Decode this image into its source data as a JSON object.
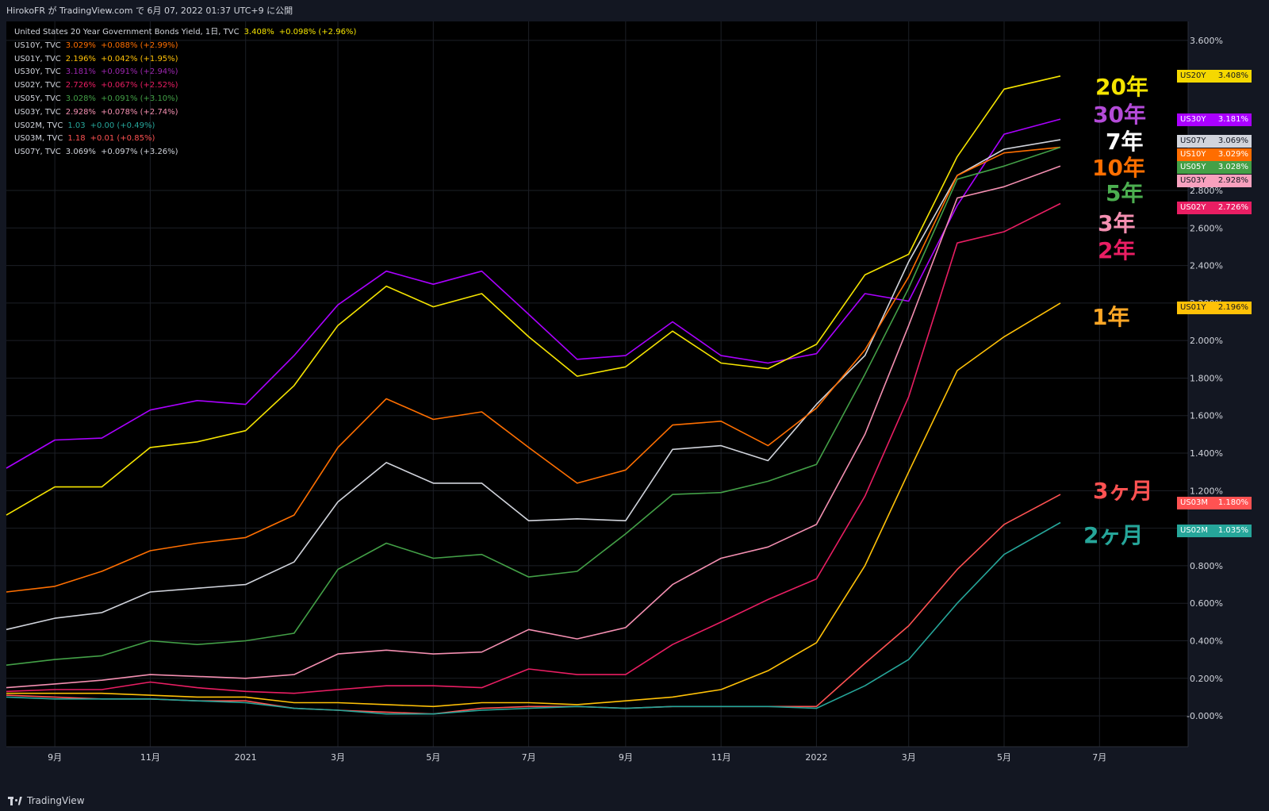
{
  "header": {
    "publisher_line": "HirokoFR が TradingView.com で 6月 07, 2022 01:37 UTC+9 に公開"
  },
  "legend": [
    {
      "name": "United States 20 Year Government Bonds Yield, 1日, TVC",
      "value": "3.408%",
      "change": "+0.098% (+2.96%)",
      "color": "#f5e400"
    },
    {
      "name": "US10Y, TVC",
      "value": "3.029%",
      "change": "+0.088% (+2.99%)",
      "color": "#ff6f00"
    },
    {
      "name": "US01Y, TVC",
      "value": "2.196%",
      "change": "+0.042% (+1.95%)",
      "color": "#ffc107"
    },
    {
      "name": "US30Y, TVC",
      "value": "3.181%",
      "change": "+0.091% (+2.94%)",
      "color": "#9c27b0"
    },
    {
      "name": "US02Y, TVC",
      "value": "2.726%",
      "change": "+0.067% (+2.52%)",
      "color": "#e91e63"
    },
    {
      "name": "US05Y, TVC",
      "value": "3.028%",
      "change": "+0.091% (+3.10%)",
      "color": "#43a047"
    },
    {
      "name": "US03Y, TVC",
      "value": "2.928%",
      "change": "+0.078% (+2.74%)",
      "color": "#f48fb1"
    },
    {
      "name": "US02M, TVC",
      "value": "1.03",
      "change": "+0.00 (+0.49%)",
      "color": "#26a69a"
    },
    {
      "name": "US03M, TVC",
      "value": "1.18",
      "change": "+0.01 (+0.85%)",
      "color": "#ff5252"
    },
    {
      "name": "US07Y, TVC",
      "value": "3.069%",
      "change": "+0.097% (+3.26%)",
      "color": "#d1d4dc"
    }
  ],
  "price_tags": [
    {
      "symbol": "US20Y",
      "value": "3.408%",
      "bg": "#f5d800",
      "fg": "#131722"
    },
    {
      "symbol": "US30Y",
      "value": "3.181%",
      "bg": "#aa00ff",
      "fg": "#ffffff"
    },
    {
      "symbol": "US07Y",
      "value": "3.069%",
      "bg": "#d1d4dc",
      "fg": "#131722"
    },
    {
      "symbol": "US10Y",
      "value": "3.029%",
      "bg": "#ff6d00",
      "fg": "#ffffff"
    },
    {
      "symbol": "US05Y",
      "value": "3.028%",
      "bg": "#43a047",
      "fg": "#ffffff"
    },
    {
      "symbol": "US03Y",
      "value": "2.928%",
      "bg": "#f8a1be",
      "fg": "#131722"
    },
    {
      "symbol": "US02Y",
      "value": "2.726%",
      "bg": "#e91e63",
      "fg": "#ffffff"
    },
    {
      "symbol": "US01Y",
      "value": "2.196%",
      "bg": "#ffc107",
      "fg": "#131722"
    },
    {
      "symbol": "US03M",
      "value": "1.180%",
      "bg": "#ff5252",
      "fg": "#ffffff"
    },
    {
      "symbol": "US02M",
      "value": "1.035%",
      "bg": "#26a69a",
      "fg": "#ffffff"
    }
  ],
  "annotations": [
    {
      "text": "20年",
      "color": "#f5e400"
    },
    {
      "text": "30年",
      "color": "#b44bd8"
    },
    {
      "text": "7年",
      "color": "#ffffff"
    },
    {
      "text": "10年",
      "color": "#ff6f00"
    },
    {
      "text": "5年",
      "color": "#4caf50"
    },
    {
      "text": "3年",
      "color": "#f48fb1"
    },
    {
      "text": "2年",
      "color": "#e91e63"
    },
    {
      "text": "1年",
      "color": "#ffa726"
    },
    {
      "text": "3ヶ月",
      "color": "#ff5252"
    },
    {
      "text": "2ヶ月",
      "color": "#26a69a"
    }
  ],
  "footer": {
    "brand": "TradingView"
  },
  "chart_data": {
    "type": "line",
    "y_unit": "%",
    "ylim": [
      -0.08,
      3.65
    ],
    "y_ticks": [
      "3.600%",
      "2.800%",
      "2.600%",
      "2.400%",
      "2.200%",
      "2.000%",
      "1.800%",
      "1.600%",
      "1.400%",
      "1.200%",
      "1.000%",
      "0.800%",
      "0.600%",
      "0.400%",
      "0.200%",
      "-0.000%"
    ],
    "x_ticks": [
      "9月",
      "11月",
      "2021",
      "3月",
      "5月",
      "7月",
      "9月",
      "11月",
      "2022",
      "3月",
      "5月",
      "7月"
    ],
    "x": [
      "2020-08-01",
      "2020-09-01",
      "2020-10-01",
      "2020-11-01",
      "2020-12-01",
      "2021-01-01",
      "2021-02-01",
      "2021-03-01",
      "2021-04-01",
      "2021-05-01",
      "2021-06-01",
      "2021-07-01",
      "2021-08-01",
      "2021-09-01",
      "2021-10-01",
      "2021-11-01",
      "2021-12-01",
      "2022-01-01",
      "2022-02-01",
      "2022-03-01",
      "2022-04-01",
      "2022-05-01",
      "2022-06-06"
    ],
    "series": [
      {
        "name": "US30Y",
        "color": "#aa00ff",
        "values": [
          1.32,
          1.47,
          1.48,
          1.63,
          1.68,
          1.66,
          1.92,
          2.19,
          2.37,
          2.3,
          2.37,
          2.14,
          1.9,
          1.92,
          2.1,
          1.92,
          1.88,
          1.93,
          2.25,
          2.21,
          2.72,
          3.1,
          3.18
        ]
      },
      {
        "name": "US20Y",
        "color": "#f5e400",
        "values": [
          1.07,
          1.22,
          1.22,
          1.43,
          1.46,
          1.52,
          1.76,
          2.08,
          2.29,
          2.18,
          2.25,
          2.02,
          1.81,
          1.86,
          2.05,
          1.88,
          1.85,
          1.98,
          2.35,
          2.46,
          2.98,
          3.34,
          3.41
        ]
      },
      {
        "name": "US07Y",
        "color": "#d1d4dc",
        "values": [
          0.46,
          0.52,
          0.55,
          0.66,
          0.68,
          0.7,
          0.82,
          1.14,
          1.35,
          1.24,
          1.24,
          1.04,
          1.05,
          1.04,
          1.42,
          1.44,
          1.36,
          1.66,
          1.92,
          2.42,
          2.88,
          3.02,
          3.07
        ]
      },
      {
        "name": "US10Y",
        "color": "#ff6f00",
        "values": [
          0.66,
          0.69,
          0.77,
          0.88,
          0.92,
          0.95,
          1.07,
          1.43,
          1.69,
          1.58,
          1.62,
          1.43,
          1.24,
          1.31,
          1.55,
          1.57,
          1.44,
          1.64,
          1.95,
          2.34,
          2.88,
          3.0,
          3.03
        ]
      },
      {
        "name": "US05Y",
        "color": "#43a047",
        "values": [
          0.27,
          0.3,
          0.32,
          0.4,
          0.38,
          0.4,
          0.44,
          0.78,
          0.92,
          0.84,
          0.86,
          0.74,
          0.77,
          0.97,
          1.18,
          1.19,
          1.25,
          1.34,
          1.82,
          2.28,
          2.86,
          2.93,
          3.03
        ]
      },
      {
        "name": "US03Y",
        "color": "#f48fb1",
        "values": [
          0.15,
          0.17,
          0.19,
          0.22,
          0.21,
          0.2,
          0.22,
          0.33,
          0.35,
          0.33,
          0.34,
          0.46,
          0.41,
          0.47,
          0.7,
          0.84,
          0.9,
          1.02,
          1.5,
          2.08,
          2.76,
          2.82,
          2.93
        ]
      },
      {
        "name": "US02Y",
        "color": "#e91e63",
        "values": [
          0.13,
          0.14,
          0.14,
          0.18,
          0.15,
          0.13,
          0.12,
          0.14,
          0.16,
          0.16,
          0.15,
          0.25,
          0.22,
          0.22,
          0.38,
          0.5,
          0.62,
          0.73,
          1.17,
          1.7,
          2.52,
          2.58,
          2.73
        ]
      },
      {
        "name": "US01Y",
        "color": "#ffc107",
        "values": [
          0.12,
          0.12,
          0.12,
          0.11,
          0.1,
          0.1,
          0.07,
          0.07,
          0.06,
          0.05,
          0.07,
          0.07,
          0.06,
          0.08,
          0.1,
          0.14,
          0.24,
          0.39,
          0.8,
          1.3,
          1.84,
          2.02,
          2.2
        ]
      },
      {
        "name": "US03M",
        "color": "#ff5252",
        "values": [
          0.11,
          0.1,
          0.09,
          0.09,
          0.08,
          0.08,
          0.04,
          0.03,
          0.02,
          0.01,
          0.04,
          0.05,
          0.05,
          0.04,
          0.05,
          0.05,
          0.05,
          0.05,
          0.28,
          0.48,
          0.78,
          1.02,
          1.18
        ]
      },
      {
        "name": "US02M",
        "color": "#26a69a",
        "values": [
          0.1,
          0.09,
          0.09,
          0.09,
          0.08,
          0.07,
          0.04,
          0.03,
          0.01,
          0.01,
          0.03,
          0.04,
          0.05,
          0.04,
          0.05,
          0.05,
          0.05,
          0.04,
          0.16,
          0.3,
          0.6,
          0.86,
          1.03
        ]
      }
    ]
  }
}
